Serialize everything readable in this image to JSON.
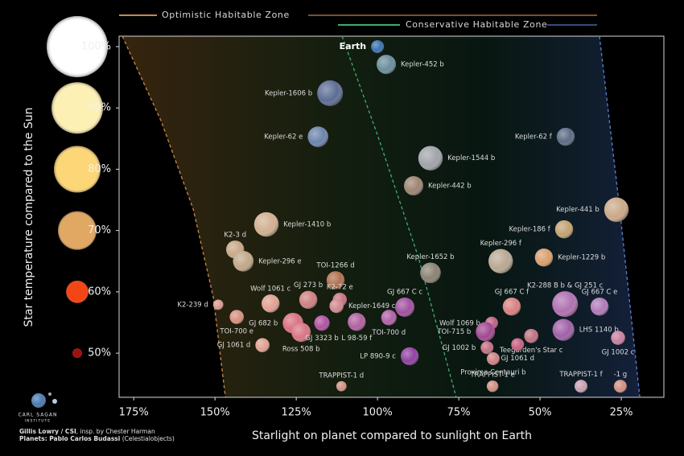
{
  "chart_data": {
    "type": "scatter",
    "x_label": "Starlight on planet compared to sunlight on Earth",
    "y_label": "Star temperature compared to the Sun",
    "xlim": [
      179.5,
      11.9
    ],
    "ylim": [
      42.8,
      101.7
    ],
    "xticks": [
      {
        "value": 175,
        "label": "175%"
      },
      {
        "value": 150,
        "label": "150%"
      },
      {
        "value": 125,
        "label": "125%"
      },
      {
        "value": 100,
        "label": "100%"
      },
      {
        "value": 75,
        "label": "75%"
      },
      {
        "value": 50,
        "label": "50%"
      },
      {
        "value": 25,
        "label": "25%"
      }
    ],
    "yticks": [
      {
        "value": 100,
        "label": "100%"
      },
      {
        "value": 90,
        "label": "90%"
      },
      {
        "value": 80,
        "label": "80%"
      },
      {
        "value": 70,
        "label": "70%"
      },
      {
        "value": 60,
        "label": "60%"
      },
      {
        "value": 50,
        "label": "50%"
      }
    ],
    "star_colors": [
      "#ffffff",
      "#fdf0b4",
      "#fcd677",
      "#e0a862",
      "#f24614",
      "#a01210"
    ],
    "zones": [
      {
        "name": "Optimistic Habitable Zone",
        "boundaries": [
          {
            "color": "#c8894a",
            "x": [
              178.5,
              166.6,
              156.7,
              150.5,
              146.8
            ],
            "y": [
              101.7,
              87.9,
              73.5,
              59.1,
              42.8
            ]
          }
        ]
      },
      {
        "name": "Conservative Habitable Zone",
        "boundaries": [
          {
            "color": "#3fae6c",
            "x": [
              110.9,
              99.8,
              87.4,
              75.8
            ],
            "y": [
              101.7,
              85.3,
              65.6,
              42.8
            ]
          },
          {
            "color": "#5a7fd0",
            "x": [
              31.7,
              25.5,
              19.3
            ],
            "y": [
              101.7,
              73.5,
              42.8
            ]
          }
        ]
      }
    ],
    "labels": [
      "Earth",
      "Kepler-452 b",
      "Kepler-1606 b",
      "Kepler-62 e",
      "Kepler-62 f",
      "Kepler-1544 b",
      "Kepler-442 b",
      "Kepler-441 b",
      "Kepler-186 f",
      "Kepler-1410 b",
      "K2-3 d",
      "Kepler-296 e",
      "Kepler-296 f",
      "Kepler-1229 b",
      "Kepler-1652 b",
      "TOI-1266 d",
      "K2-239 d",
      "TOI-700 e",
      "Wolf 1061 c",
      "GJ 273 b",
      "K2-72 e",
      "Kepler-1649 c",
      "GJ 667 C c",
      "GJ 682 b",
      "Ross 508 b",
      "GJ 3323 b",
      "L 98-59 f",
      "TOI-700 d",
      "GJ 1061 d",
      "LP 890-9 c",
      "TRAPPIST-1 d",
      "GJ 667 C f",
      "Wolf 1069 b",
      "TOI-715 b",
      "GJ 1002 b",
      "Teegarden's Star c",
      "GJ 1061 d",
      "Proxima Centauri b",
      "K2-288 B b & GJ 251 c",
      "GJ 667 C e",
      "LHS 1140 b",
      "GJ 1002 c",
      "TRAPPIST-1 e",
      "TRAPPIST-1 f",
      "-1 g"
    ],
    "x": [
      100,
      97.3,
      114.6,
      118.3,
      42.1,
      83.7,
      88.9,
      26.5,
      42.6,
      134.2,
      143.8,
      141.3,
      62.1,
      48.8,
      83.7,
      112.9,
      149.0,
      143.3,
      132.9,
      121.3,
      111.6,
      112.6,
      91.6,
      126.0,
      123.5,
      117.1,
      106.4,
      96.5,
      135.4,
      90.1,
      111.1,
      58.7,
      64.9,
      66.8,
      66.3,
      52.7,
      56.9,
      64.4,
      42.3,
      31.7,
      42.8,
      26.0,
      64.6,
      37.4,
      25.3
    ],
    "values": [
      100,
      97.1,
      92.4,
      85.3,
      85.3,
      81.8,
      77.3,
      73.4,
      70.2,
      71.0,
      66.9,
      65.0,
      65.0,
      65.6,
      63.1,
      61.9,
      57.9,
      55.9,
      58.1,
      58.7,
      58.7,
      57.7,
      57.5,
      54.9,
      53.4,
      54.9,
      55.1,
      55.8,
      51.3,
      49.5,
      44.6,
      57.6,
      54.9,
      53.5,
      50.9,
      52.8,
      51.4,
      49.1,
      58.0,
      57.6,
      53.8,
      52.5,
      44.6,
      44.6,
      44.6
    ],
    "sizes": [
      1,
      1.5,
      2,
      1.6,
      1.4,
      1.9,
      1.5,
      1.9,
      1.4,
      1.9,
      1.4,
      1.6,
      1.9,
      1.4,
      1.6,
      1.4,
      0.8,
      1.1,
      1.4,
      1.4,
      1.1,
      1.1,
      1.5,
      1.6,
      1.5,
      1.2,
      1.4,
      1.2,
      1.1,
      1.4,
      0.8,
      1.4,
      1,
      1.5,
      1,
      1.1,
      1,
      1,
      2,
      1.4,
      1.7,
      1.1,
      0.9,
      1,
      1
    ],
    "colors": [
      "#3a72b0",
      "#6a8c9c",
      "#5c6c94",
      "#6c84ac",
      "#5c6c84",
      "#a2a2aa",
      "#9c8472",
      "#caa888",
      "#c2a272",
      "#d0b090",
      "#c8a888",
      "#c0a888",
      "#b8a892",
      "#d8a070",
      "#8a8272",
      "#b07050",
      "#d89a90",
      "#d89080",
      "#e0a090",
      "#d08080",
      "#c87080",
      "#d08890",
      "#a050a0",
      "#d87080",
      "#d87484",
      "#b050a0",
      "#b060a0",
      "#b060a8",
      "#e0a090",
      "#9040a0",
      "#d09080",
      "#d88080",
      "#c06080",
      "#a04890",
      "#c07080",
      "#c07080",
      "#c86080",
      "#d08080",
      "#b070b0",
      "#b07ab8",
      "#a060a8",
      "#c880a0",
      "#d09080",
      "#c8a0b0",
      "#d09080"
    ],
    "credits": {
      "author": "Gillis Lowry / CSI",
      "author_note": ", insp. by Chester Harman",
      "planets": "Planets: Pablo Carlos Budassi",
      "planets_note": "(Celestialobjects)"
    },
    "logo": [
      "CARL SAGAN",
      "INSTITUTE"
    ]
  }
}
